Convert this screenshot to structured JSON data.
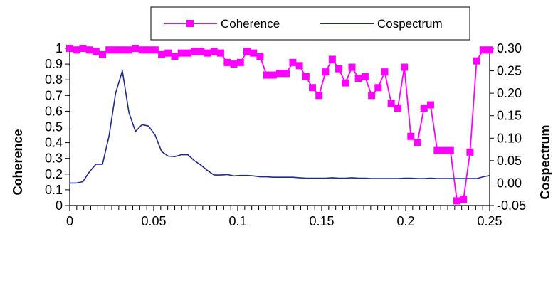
{
  "chart_data": {
    "type": "line",
    "x_axis": {
      "range": [
        0,
        0.25
      ],
      "ticks": [
        0,
        0.05,
        0.1,
        0.15,
        0.2,
        0.25
      ],
      "tick_labels": [
        "0",
        "0.05",
        "0.1",
        "0.15",
        "0.2",
        "0.25"
      ]
    },
    "y_axis_left": {
      "label": "Coherence",
      "range": [
        0,
        1
      ],
      "ticks": [
        0,
        0.1,
        0.2,
        0.3,
        0.4,
        0.5,
        0.6,
        0.7,
        0.8,
        0.9,
        1
      ],
      "tick_labels": [
        "0",
        "0.1",
        "0.2",
        "0.3",
        "0.4",
        "0.5",
        "0.6",
        "0.7",
        "0.8",
        "0.9",
        "1"
      ]
    },
    "y_axis_right": {
      "label": "Cospectrum",
      "range": [
        -0.05,
        0.3
      ],
      "ticks": [
        -0.05,
        0,
        0.05,
        0.1,
        0.15,
        0.2,
        0.25,
        0.3
      ],
      "tick_labels": [
        "-0.05",
        "0.00",
        "0.05",
        "0.10",
        "0.15",
        "0.20",
        "0.25",
        "0.30"
      ]
    },
    "legend": {
      "position": "top",
      "entries": [
        "Coherence",
        "Cospectrum"
      ]
    },
    "series": [
      {
        "name": "Coherence",
        "axis": "left",
        "color": "#ff00ff",
        "marker": "square",
        "x": [
          0.0,
          0.0039,
          0.0078,
          0.0117,
          0.0156,
          0.0195,
          0.0234,
          0.0273,
          0.0313,
          0.0352,
          0.0391,
          0.043,
          0.0469,
          0.0508,
          0.0547,
          0.0586,
          0.0625,
          0.0664,
          0.0703,
          0.0742,
          0.0781,
          0.082,
          0.0859,
          0.0898,
          0.0938,
          0.0977,
          0.1016,
          0.1055,
          0.1094,
          0.1133,
          0.1172,
          0.1211,
          0.125,
          0.1289,
          0.1328,
          0.1367,
          0.1406,
          0.1445,
          0.1484,
          0.1523,
          0.1563,
          0.1602,
          0.1641,
          0.168,
          0.1719,
          0.1758,
          0.1797,
          0.1836,
          0.1875,
          0.1914,
          0.1953,
          0.1992,
          0.2031,
          0.207,
          0.2109,
          0.2148,
          0.2188,
          0.2227,
          0.2266,
          0.2305,
          0.2344,
          0.2383,
          0.2422,
          0.2461,
          0.25
        ],
        "values": [
          1.0,
          0.99,
          1.0,
          0.99,
          0.98,
          0.96,
          0.99,
          0.99,
          0.99,
          0.99,
          1.0,
          0.99,
          0.99,
          0.99,
          0.96,
          0.97,
          0.95,
          0.97,
          0.97,
          0.98,
          0.98,
          0.97,
          0.98,
          0.97,
          0.91,
          0.9,
          0.91,
          0.98,
          0.97,
          0.95,
          0.83,
          0.83,
          0.84,
          0.84,
          0.91,
          0.89,
          0.82,
          0.75,
          0.7,
          0.85,
          0.93,
          0.87,
          0.78,
          0.88,
          0.81,
          0.82,
          0.7,
          0.75,
          0.85,
          0.65,
          0.62,
          0.88,
          0.44,
          0.4,
          0.62,
          0.64,
          0.35,
          0.35,
          0.35,
          0.03,
          0.04,
          0.34,
          0.92,
          0.99,
          0.99
        ]
      },
      {
        "name": "Cospectrum",
        "axis": "right",
        "color": "#1f2a8a",
        "marker": "none",
        "x": [
          0.0,
          0.0039,
          0.0078,
          0.0117,
          0.0156,
          0.0195,
          0.0234,
          0.0273,
          0.0313,
          0.0352,
          0.0391,
          0.043,
          0.0469,
          0.0508,
          0.0547,
          0.0586,
          0.0625,
          0.0664,
          0.0703,
          0.0742,
          0.0781,
          0.082,
          0.0859,
          0.0898,
          0.0938,
          0.0977,
          0.1016,
          0.1055,
          0.1094,
          0.1133,
          0.1172,
          0.1211,
          0.125,
          0.1289,
          0.1328,
          0.1367,
          0.1406,
          0.1445,
          0.1484,
          0.1523,
          0.1563,
          0.1602,
          0.1641,
          0.168,
          0.1719,
          0.1758,
          0.1797,
          0.1836,
          0.1875,
          0.1914,
          0.1953,
          0.1992,
          0.2031,
          0.207,
          0.2109,
          0.2148,
          0.2188,
          0.2227,
          0.2266,
          0.2305,
          0.2344,
          0.2383,
          0.2422,
          0.2461,
          0.25
        ],
        "values": [
          0.0,
          0.0,
          0.003,
          0.025,
          0.042,
          0.042,
          0.105,
          0.2,
          0.25,
          0.157,
          0.115,
          0.13,
          0.127,
          0.107,
          0.07,
          0.06,
          0.059,
          0.063,
          0.063,
          0.05,
          0.04,
          0.028,
          0.018,
          0.018,
          0.019,
          0.016,
          0.017,
          0.017,
          0.016,
          0.014,
          0.014,
          0.013,
          0.013,
          0.013,
          0.013,
          0.012,
          0.011,
          0.011,
          0.011,
          0.011,
          0.012,
          0.011,
          0.011,
          0.012,
          0.011,
          0.011,
          0.01,
          0.01,
          0.01,
          0.01,
          0.01,
          0.011,
          0.011,
          0.01,
          0.01,
          0.011,
          0.01,
          0.01,
          0.01,
          0.01,
          0.01,
          0.01,
          0.01,
          0.014,
          0.017
        ]
      }
    ]
  }
}
